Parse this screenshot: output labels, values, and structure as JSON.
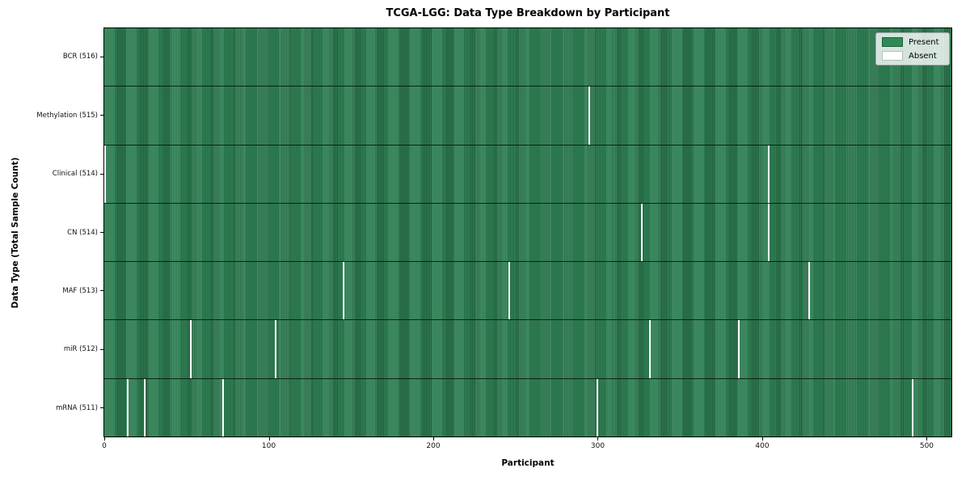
{
  "chart_data": {
    "type": "heatmap",
    "title": "TCGA-LGG: Data Type Breakdown by Participant",
    "xlabel": "Participant",
    "ylabel": "Data Type (Total Sample Count)",
    "x_ticks": [
      0,
      100,
      200,
      300,
      400,
      500
    ],
    "x_domain": [
      0,
      516
    ],
    "total_participants": 516,
    "grid": false,
    "legend": {
      "position": "upper right",
      "items": [
        {
          "label": "Present",
          "color": "#2e8b57",
          "edge": "#235f3d"
        },
        {
          "label": "Absent",
          "color": "#ffffff",
          "edge": "#b8c0b8"
        }
      ]
    },
    "rows": [
      {
        "label": "BCR (516)",
        "data_type": "BCR",
        "sample_count": 516,
        "absent_participants": []
      },
      {
        "label": "Methylation (515)",
        "data_type": "Methylation",
        "sample_count": 515,
        "absent_participants": [
          295
        ]
      },
      {
        "label": "Clinical (514)",
        "data_type": "Clinical",
        "sample_count": 514,
        "absent_participants": [
          0,
          404
        ]
      },
      {
        "label": "CN (514)",
        "data_type": "CN",
        "sample_count": 514,
        "absent_participants": [
          327,
          404
        ]
      },
      {
        "label": "MAF (513)",
        "data_type": "MAF",
        "sample_count": 513,
        "absent_participants": [
          145,
          246,
          429
        ]
      },
      {
        "label": "miR (512)",
        "data_type": "miR",
        "sample_count": 512,
        "absent_participants": [
          52,
          104,
          332,
          386
        ]
      },
      {
        "label": "mRNA (511)",
        "data_type": "mRNA",
        "sample_count": 511,
        "absent_participants": [
          14,
          24,
          72,
          300,
          492
        ]
      }
    ],
    "colors": {
      "present_fill": "#338a5b",
      "present_edge": "#24603f",
      "absent": "#ffffff",
      "axis": "#000000",
      "legend_bg": "#e9efe9",
      "legend_border": "#a3a8a3"
    }
  }
}
